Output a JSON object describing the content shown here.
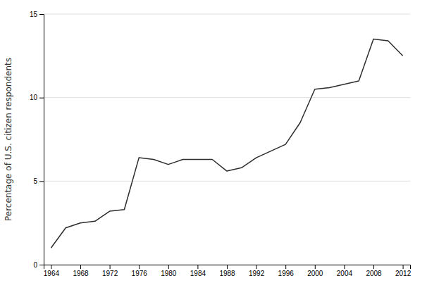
{
  "chart_data": {
    "type": "line",
    "ylabel": "Percentage of U.S. citizen respondents",
    "x": [
      1964,
      1966,
      1968,
      1970,
      1972,
      1974,
      1976,
      1978,
      1980,
      1982,
      1984,
      1986,
      1988,
      1990,
      1992,
      1994,
      1996,
      1998,
      2000,
      2002,
      2004,
      2006,
      2008,
      2010,
      2012
    ],
    "values": [
      1.0,
      2.2,
      2.5,
      2.6,
      3.2,
      3.3,
      6.4,
      6.3,
      6.0,
      6.3,
      6.3,
      6.3,
      5.6,
      5.8,
      6.4,
      6.8,
      7.2,
      8.5,
      10.5,
      10.6,
      10.8,
      11.0,
      13.5,
      13.4,
      12.5
    ],
    "color": "#2d2d2d",
    "xlim": [
      1963,
      2013
    ],
    "ylim": [
      0,
      15
    ],
    "xticks": [
      1964,
      1968,
      1972,
      1976,
      1980,
      1984,
      1988,
      1992,
      1996,
      2000,
      2004,
      2008,
      2012
    ],
    "yticks": [
      0,
      5,
      10,
      15
    ],
    "grid": true
  }
}
